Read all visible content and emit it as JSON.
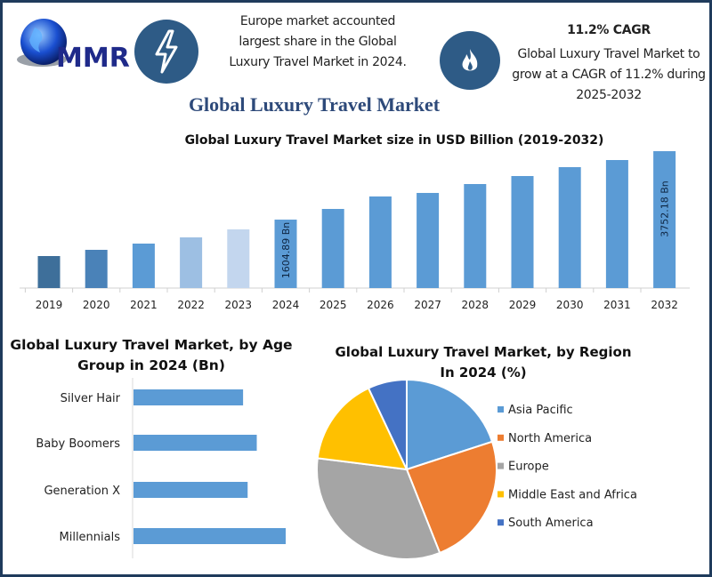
{
  "logo": {
    "text": "MMR"
  },
  "header": {
    "europe_text": [
      "Europe market accounted",
      "largest share in the Global",
      "Luxury Travel Market in 2024."
    ],
    "cagr_heading": "11.2% CAGR",
    "cagr_text": [
      "Global Luxury Travel Market to",
      "grow at a CAGR of 11.2% during",
      "2025-2032"
    ],
    "icons": [
      "lightning-bolt-icon",
      "flame-icon"
    ]
  },
  "title": "Global Luxury Travel Market",
  "chart_data": [
    {
      "type": "bar",
      "title": "Global Luxury Travel Market size in USD Billion (2019-2032)",
      "categories": [
        "2019",
        "2020",
        "2021",
        "2022",
        "2023",
        "2024",
        "2025",
        "2026",
        "2027",
        "2028",
        "2029",
        "2030",
        "2031",
        "2032"
      ],
      "values": [
        462,
        657,
        853,
        1048,
        1299,
        1604.89,
        1940,
        2331,
        2442,
        2721,
        2972,
        3251,
        3474,
        3752.18
      ],
      "colors": [
        "#3e6f9a",
        "#4a82b8",
        "#5b9bd5",
        "#9dbfe3",
        "#c3d6ee",
        "#5b9bd5",
        "#5b9bd5",
        "#5b9bd5",
        "#5b9bd5",
        "#5b9bd5",
        "#5b9bd5",
        "#5b9bd5",
        "#5b9bd5",
        "#5b9bd5"
      ],
      "data_labels": {
        "2024": "1604.89 Bn",
        "2032": "3752.18 Bn"
      },
      "grid": false
    },
    {
      "type": "bar",
      "orientation": "horizontal",
      "title": "Global Luxury Travel Market, by Age Group in 2024 (Bn)",
      "title_lines": [
        "Global Luxury Travel Market, by Age",
        "Group in 2024 (Bn)"
      ],
      "categories": [
        "Silver Hair",
        "Baby Boomers",
        "Generation X",
        "Millennials"
      ],
      "values_relative": [
        0.72,
        0.81,
        0.75,
        1.0
      ],
      "color": "#5b9bd5",
      "grid": false
    },
    {
      "type": "pie",
      "title": "Global Luxury Travel Market, by Region In 2024 (%)",
      "title_lines": [
        "Global Luxury Travel Market, by Region",
        "In 2024 (%)"
      ],
      "categories": [
        "Asia Pacific",
        "North America",
        "Europe",
        "Middle East and Africa",
        "South America"
      ],
      "values": [
        20,
        24,
        33,
        16,
        7
      ],
      "colors": [
        "#5b9bd5",
        "#ed7d31",
        "#a5a5a5",
        "#ffc000",
        "#4472c4"
      ],
      "legend": "right"
    }
  ]
}
